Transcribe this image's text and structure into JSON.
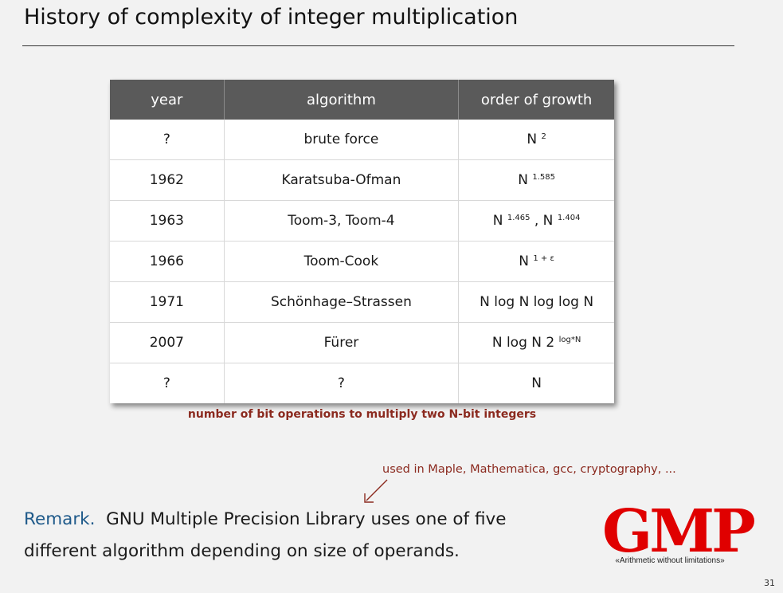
{
  "slide": {
    "title": "History of complexity of integer multiplication",
    "page_number": "31"
  },
  "table": {
    "headers": [
      "year",
      "algorithm",
      "order of growth"
    ],
    "rows": [
      {
        "year": "?",
        "algorithm": "brute force",
        "growth": [
          {
            "base": "N ",
            "sup": "2"
          }
        ]
      },
      {
        "year": "1962",
        "algorithm": "Karatsuba-Ofman",
        "growth": [
          {
            "base": "N ",
            "sup": "1.585"
          }
        ]
      },
      {
        "year": "1963",
        "algorithm": "Toom-3, Toom-4",
        "growth": [
          {
            "base": "N ",
            "sup": "1.465"
          },
          {
            "base": " , N ",
            "sup": "1.404"
          }
        ]
      },
      {
        "year": "1966",
        "algorithm": "Toom-Cook",
        "growth": [
          {
            "base": "N ",
            "sup": "1 + ε"
          }
        ]
      },
      {
        "year": "1971",
        "algorithm": "Schönhage–Strassen",
        "growth": [
          {
            "base": "N log N log log N",
            "sup": ""
          }
        ]
      },
      {
        "year": "2007",
        "algorithm": "Fürer",
        "growth": [
          {
            "base": "N log N 2 ",
            "sup": "log*N"
          }
        ]
      },
      {
        "year": "?",
        "algorithm": "?",
        "growth": [
          {
            "base": "N",
            "sup": ""
          }
        ]
      }
    ]
  },
  "caption": "number of bit operations to multiply two N-bit integers",
  "annotation": "used in Maple, Mathematica, gcc, cryptography, ...",
  "remark": {
    "lead": "Remark.",
    "text": "GNU Multiple Precision Library uses one of five different algorithm depending on size of operands."
  },
  "logo": {
    "text": "GMP",
    "tagline": "«Arithmetic without limitations»",
    "color": "#e00000"
  },
  "colors": {
    "header_bg": "#5a5a5a",
    "accent_red": "#8b2a1f",
    "accent_blue": "#1f5a8a"
  }
}
